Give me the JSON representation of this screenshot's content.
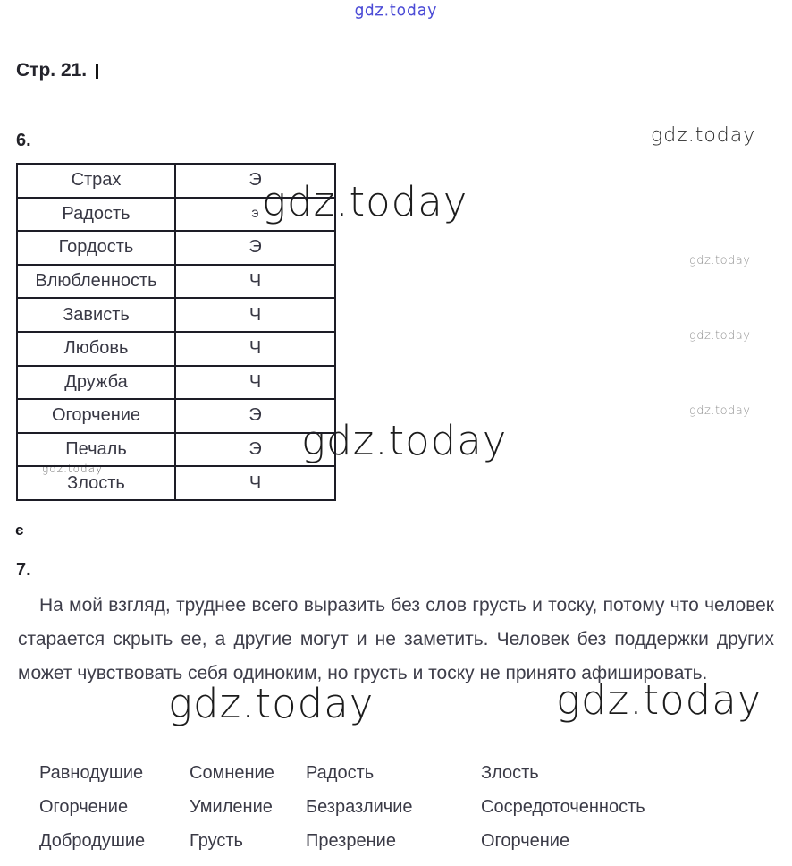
{
  "watermark": {
    "text": "gdz.today"
  },
  "header": {
    "page_heading": "Стр. 21."
  },
  "sections": {
    "six_label": "6.",
    "seven_label": "7.",
    "stray_glyph": "є"
  },
  "table": {
    "rows": [
      {
        "emotion": "Страх",
        "mark": "Э"
      },
      {
        "emotion": "Радость",
        "mark": "э"
      },
      {
        "emotion": "Гордость",
        "mark": "Э"
      },
      {
        "emotion": "Влюбленность",
        "mark": "Ч"
      },
      {
        "emotion": "Зависть",
        "mark": "Ч"
      },
      {
        "emotion": "Любовь",
        "mark": "Ч"
      },
      {
        "emotion": "Дружба",
        "mark": "Ч"
      },
      {
        "emotion": "Огорчение",
        "mark": "Э"
      },
      {
        "emotion": "Печаль",
        "mark": "Э"
      },
      {
        "emotion": "Злость",
        "mark": "Ч"
      }
    ]
  },
  "answer7": {
    "text": "На мой взгляд, труднее всего выразить без слов грусть и тоску, потому что человек старается скрыть ее, а другие могут и не заметить. Человек без поддержки других может чувствовать себя одиноким, но грусть и тоску не принято афишировать."
  },
  "word_list": {
    "columns": [
      [
        "Равнодушие",
        "Огорчение",
        "Добродушие"
      ],
      [
        "Сомнение",
        "Умиление",
        "Грусть"
      ],
      [
        "Радость",
        "Безразличие",
        "Презрение"
      ],
      [
        "Злость",
        "Сосредоточенность",
        "Огорчение"
      ]
    ]
  },
  "colors": {
    "text": "#3a3a44",
    "table_border": "#1d1d26",
    "watermark_blue": "#4b4bd6",
    "watermark_dark": "#1c1c1c",
    "watermark_gray": "#8f8f8f"
  }
}
